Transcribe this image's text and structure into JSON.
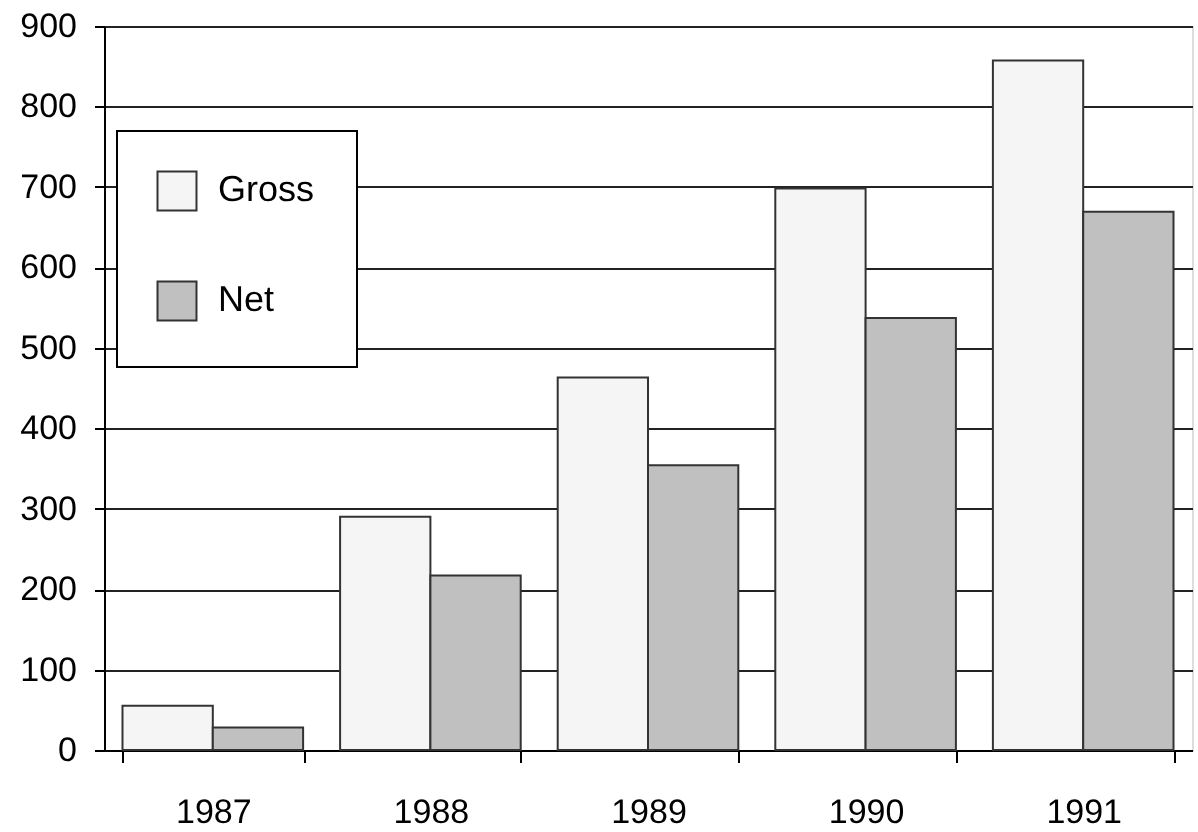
{
  "chart_data": {
    "type": "bar",
    "categories": [
      "1987",
      "1988",
      "1989",
      "1990",
      "1991"
    ],
    "series": [
      {
        "name": "Gross",
        "color": "#f5f5f5",
        "values": [
          55,
          290,
          463,
          698,
          857
        ]
      },
      {
        "name": "Net",
        "color": "#c0c0c0",
        "values": [
          28,
          217,
          354,
          537,
          669
        ]
      }
    ],
    "ylim": [
      0,
      900
    ],
    "yticks": [
      0,
      100,
      200,
      300,
      400,
      500,
      600,
      700,
      800,
      900
    ],
    "grid": "y",
    "legend": "top left"
  }
}
